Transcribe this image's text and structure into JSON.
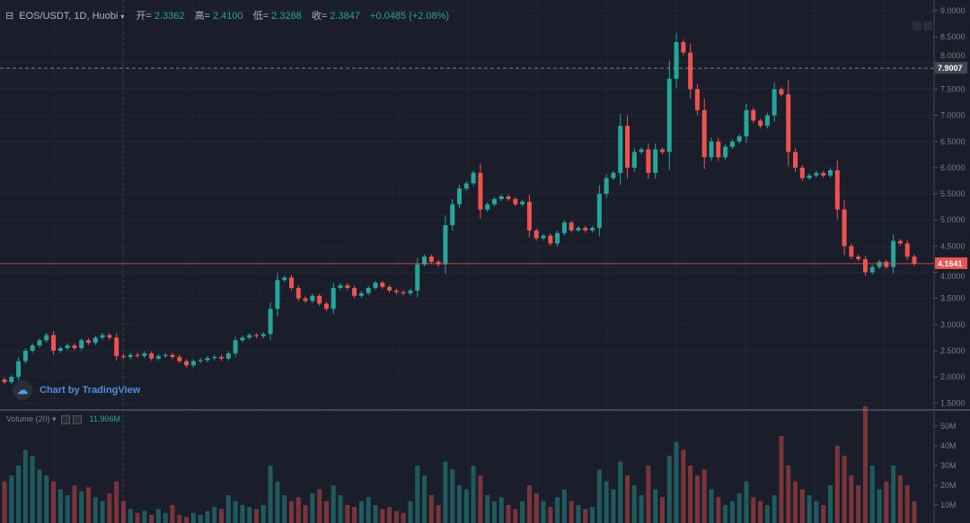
{
  "header": {
    "symbol": "EOS/USDT, 1D, Huobi",
    "open_label": "开=",
    "open": "2.3362",
    "high_label": "高=",
    "high": "2.4100",
    "low_label": "低=",
    "low": "2.3268",
    "close_label": "收=",
    "close": "2.3847",
    "change": "+0.0485 (+2.08%)"
  },
  "watermark": "Chart by TradingView",
  "volume_legend": {
    "label": "Volume (20)",
    "value": "11.906M"
  },
  "colors": {
    "up": "#26a69a",
    "down": "#ef5350",
    "background": "#1a1e2b"
  },
  "chart_data": [
    {
      "type": "candlestick",
      "ylim": [
        1.5,
        9.0
      ],
      "y_ticks": [
        "9.0000",
        "8.5000",
        "8.0000",
        "7.5000",
        "7.0000",
        "6.5000",
        "6.0000",
        "5.5000",
        "5.0000",
        "4.5000",
        "4.0000",
        "3.5000",
        "3.0000",
        "2.5000",
        "2.0000",
        "1.5000"
      ],
      "price_lines": [
        {
          "value": 7.9007,
          "label": "7.9007",
          "style": "dashed"
        },
        {
          "value": 4.1641,
          "label": "4.1641",
          "style": "solid",
          "color": "#ef5350"
        }
      ],
      "first_open": 1.95,
      "close": [
        1.9,
        2.0,
        2.3,
        2.5,
        2.6,
        2.7,
        2.8,
        2.5,
        2.55,
        2.6,
        2.55,
        2.7,
        2.65,
        2.75,
        2.8,
        2.75,
        2.4,
        2.38,
        2.42,
        2.4,
        2.45,
        2.35,
        2.4,
        2.42,
        2.38,
        2.3,
        2.22,
        2.3,
        2.32,
        2.36,
        2.38,
        2.35,
        2.45,
        2.7,
        2.75,
        2.8,
        2.78,
        2.82,
        3.3,
        3.85,
        3.9,
        3.7,
        3.5,
        3.45,
        3.55,
        3.4,
        3.3,
        3.7,
        3.75,
        3.7,
        3.55,
        3.6,
        3.7,
        3.8,
        3.72,
        3.65,
        3.62,
        3.6,
        3.65,
        4.15,
        4.3,
        4.2,
        4.15,
        4.9,
        5.3,
        5.6,
        5.7,
        5.9,
        5.2,
        5.3,
        5.4,
        5.45,
        5.4,
        5.3,
        5.35,
        4.8,
        4.65,
        4.7,
        4.55,
        4.75,
        4.95,
        4.8,
        4.85,
        4.8,
        4.85,
        5.5,
        5.8,
        5.9,
        6.8,
        6.0,
        6.3,
        6.35,
        5.9,
        6.35,
        6.3,
        7.7,
        8.4,
        8.2,
        7.5,
        7.1,
        6.2,
        6.5,
        6.2,
        6.4,
        6.5,
        6.6,
        7.1,
        6.9,
        6.8,
        7.0,
        7.5,
        7.4,
        6.3,
        6.0,
        5.8,
        5.85,
        5.9,
        5.85,
        5.95,
        5.2,
        4.5,
        4.3,
        4.25,
        4.0,
        4.1,
        4.2,
        4.1,
        4.6,
        4.55,
        4.3,
        4.16
      ]
    },
    {
      "type": "bar",
      "title": "Volume (20)",
      "ylim": [
        0,
        55
      ],
      "y_ticks": [
        "50M",
        "40M",
        "30M",
        "20M",
        "10M"
      ],
      "values_m": [
        22,
        25,
        30,
        38,
        35,
        28,
        25,
        22,
        18,
        15,
        20,
        17,
        19,
        14,
        12,
        16,
        22,
        12,
        8,
        6,
        7,
        5,
        8,
        6,
        10,
        5,
        4,
        6,
        5,
        7,
        9,
        8,
        15,
        12,
        10,
        9,
        8,
        10,
        30,
        22,
        15,
        12,
        14,
        10,
        16,
        18,
        12,
        20,
        15,
        10,
        9,
        12,
        14,
        10,
        8,
        9,
        7,
        6,
        12,
        30,
        25,
        15,
        10,
        32,
        28,
        20,
        18,
        30,
        25,
        15,
        12,
        14,
        10,
        8,
        12,
        20,
        16,
        12,
        9,
        14,
        18,
        12,
        10,
        8,
        9,
        28,
        22,
        18,
        32,
        25,
        20,
        15,
        30,
        18,
        14,
        35,
        42,
        38,
        30,
        25,
        28,
        18,
        14,
        10,
        12,
        16,
        22,
        14,
        12,
        10,
        15,
        45,
        30,
        22,
        18,
        15,
        12,
        10,
        20,
        40,
        35,
        25,
        20,
        60,
        30,
        18,
        22,
        30,
        25,
        20,
        12
      ]
    }
  ]
}
